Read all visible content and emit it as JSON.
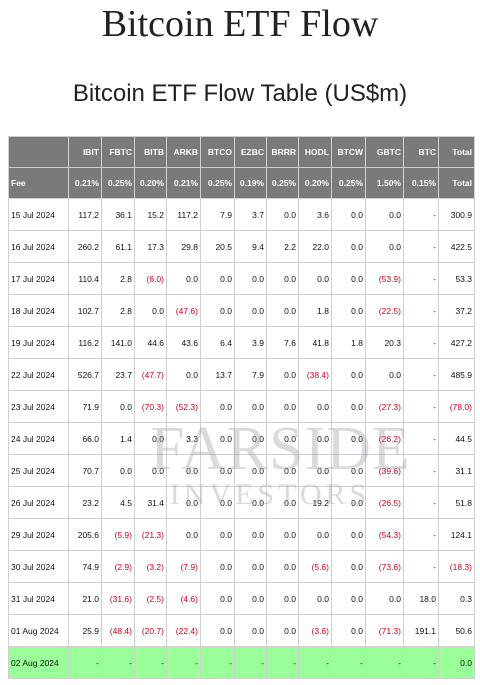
{
  "page": {
    "title": "Bitcoin ETF Flow",
    "table_title": "Bitcoin ETF Flow Table (US$m)"
  },
  "watermark": {
    "line1": "FARSIDE",
    "line2": "INVESTORS"
  },
  "colors": {
    "header_bg": "#7a7a7a",
    "negative": "#d0021b",
    "highlight_row": "#99ff99"
  },
  "table": {
    "columns": [
      "",
      "IBIT",
      "FBTC",
      "BITB",
      "ARKB",
      "BTCO",
      "EZBC",
      "BRRR",
      "HODL",
      "BTCW",
      "GBTC",
      "BTC",
      "Total"
    ],
    "fees": [
      "Fee",
      "0.21%",
      "0.25%",
      "0.20%",
      "0.21%",
      "0.25%",
      "0.19%",
      "0.25%",
      "0.20%",
      "0.25%",
      "1.50%",
      "0.15%",
      "Total"
    ],
    "rows": [
      [
        "15 Jul 2024",
        "117.2",
        "36.1",
        "15.2",
        "117.2",
        "7.9",
        "3.7",
        "0.0",
        "3.6",
        "0.0",
        "0.0",
        "-",
        "300.9"
      ],
      [
        "16 Jul 2024",
        "260.2",
        "61.1",
        "17.3",
        "29.8",
        "20.5",
        "9.4",
        "2.2",
        "22.0",
        "0.0",
        "0.0",
        "-",
        "422.5"
      ],
      [
        "17 Jul 2024",
        "110.4",
        "2.8",
        "(6.0)",
        "0.0",
        "0.0",
        "0.0",
        "0.0",
        "0.0",
        "0.0",
        "(53.9)",
        "-",
        "53.3"
      ],
      [
        "18 Jul 2024",
        "102.7",
        "2.8",
        "0.0",
        "(47.6)",
        "0.0",
        "0.0",
        "0.0",
        "1.8",
        "0.0",
        "(22.5)",
        "-",
        "37.2"
      ],
      [
        "19 Jul 2024",
        "116.2",
        "141.0",
        "44.6",
        "43.6",
        "6.4",
        "3.9",
        "7.6",
        "41.8",
        "1.8",
        "20.3",
        "-",
        "427.2"
      ],
      [
        "22 Jul 2024",
        "526.7",
        "23.7",
        "(47.7)",
        "0.0",
        "13.7",
        "7.9",
        "0.0",
        "(38.4)",
        "0.0",
        "0.0",
        "-",
        "485.9"
      ],
      [
        "23 Jul 2024",
        "71.9",
        "0.0",
        "(70.3)",
        "(52.3)",
        "0.0",
        "0.0",
        "0.0",
        "0.0",
        "0.0",
        "(27.3)",
        "-",
        "(78.0)"
      ],
      [
        "24 Jul 2024",
        "66.0",
        "1.4",
        "0.0",
        "3.3",
        "0.0",
        "0.0",
        "0.0",
        "0.0",
        "0.0",
        "(26.2)",
        "-",
        "44.5"
      ],
      [
        "25 Jul 2024",
        "70.7",
        "0.0",
        "0.0",
        "0.0",
        "0.0",
        "0.0",
        "0.0",
        "0.0",
        "0.0",
        "(39.6)",
        "-",
        "31.1"
      ],
      [
        "26 Jul 2024",
        "23.2",
        "4.5",
        "31.4",
        "0.0",
        "0.0",
        "0.0",
        "0.0",
        "19.2",
        "0.0",
        "(26.5)",
        "-",
        "51.8"
      ],
      [
        "29 Jul 2024",
        "205.6",
        "(5.9)",
        "(21.3)",
        "0.0",
        "0.0",
        "0.0",
        "0.0",
        "0.0",
        "0.0",
        "(54.3)",
        "-",
        "124.1"
      ],
      [
        "30 Jul 2024",
        "74.9",
        "(2.9)",
        "(3.2)",
        "(7.9)",
        "0.0",
        "0.0",
        "0.0",
        "(5.6)",
        "0.0",
        "(73.6)",
        "-",
        "(18.3)"
      ],
      [
        "31 Jul 2024",
        "21.0",
        "(31.6)",
        "(2.5)",
        "(4.6)",
        "0.0",
        "0.0",
        "0.0",
        "0.0",
        "0.0",
        "0.0",
        "18.0",
        "0.3"
      ],
      [
        "01 Aug 2024",
        "25.9",
        "(48.4)",
        "(20.7)",
        "(22.4)",
        "0.0",
        "0.0",
        "0.0",
        "(3.6)",
        "0.0",
        "(71.3)",
        "191.1",
        "50.6"
      ],
      [
        "02 Aug 2024",
        "-",
        "-",
        "-",
        "-",
        "-",
        "-",
        "-",
        "-",
        "-",
        "-",
        "-",
        "0.0"
      ]
    ],
    "highlight_row_index": 14
  }
}
